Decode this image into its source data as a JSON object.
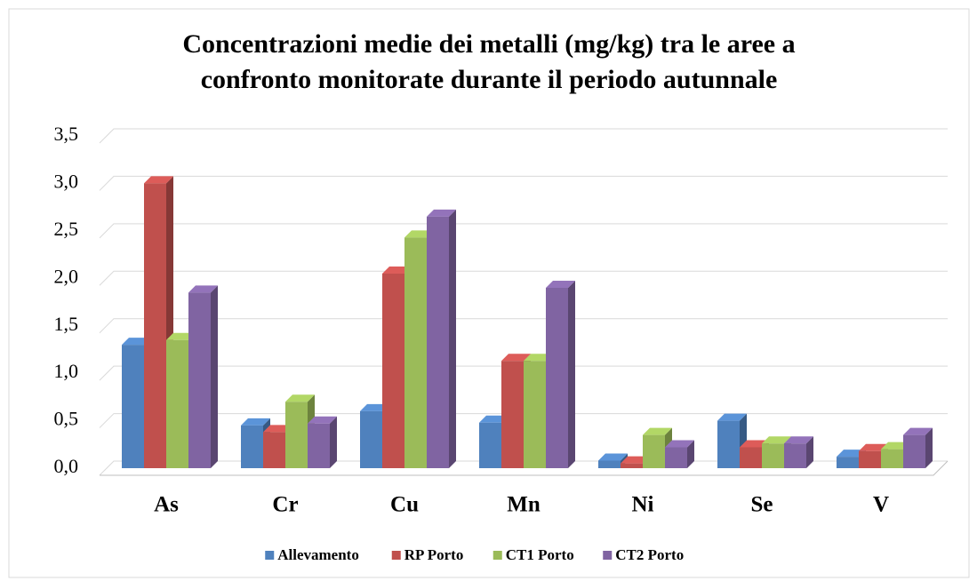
{
  "chart_data": {
    "type": "bar3d",
    "title_lines": [
      "Concentrazioni medie dei metalli (mg/kg) tra le aree a",
      "confronto monitorate durante il periodo autunnale"
    ],
    "categories": [
      "As",
      "Cr",
      "Cu",
      "Mn",
      "Ni",
      "Se",
      "V"
    ],
    "series": [
      {
        "name": "Allevamento",
        "color": "#4f81bd",
        "values": [
          1.3,
          0.45,
          0.6,
          0.48,
          0.08,
          0.5,
          0.12
        ]
      },
      {
        "name": "RP Porto",
        "color": "#c0504d",
        "values": [
          3.0,
          0.38,
          2.05,
          1.13,
          0.05,
          0.22,
          0.18
        ]
      },
      {
        "name": "CT1 Porto",
        "color": "#9bbb59",
        "values": [
          1.35,
          0.7,
          2.43,
          1.13,
          0.35,
          0.26,
          0.2
        ]
      },
      {
        "name": "CT2 Porto",
        "color": "#8064a2",
        "values": [
          1.85,
          0.47,
          2.65,
          1.9,
          0.22,
          0.26,
          0.35
        ]
      }
    ],
    "ylim": [
      0,
      3.5
    ],
    "yticks": [
      {
        "value": 0,
        "label": "0,0"
      },
      {
        "value": 0.5,
        "label": "0,5"
      },
      {
        "value": 1,
        "label": "1,0"
      },
      {
        "value": 1.5,
        "label": "1,5"
      },
      {
        "value": 2,
        "label": "2,0"
      },
      {
        "value": 2.5,
        "label": "2,5"
      },
      {
        "value": 3,
        "label": "3,0"
      },
      {
        "value": 3.5,
        "label": "3,5"
      }
    ],
    "grid": true,
    "legend": "bottom"
  }
}
